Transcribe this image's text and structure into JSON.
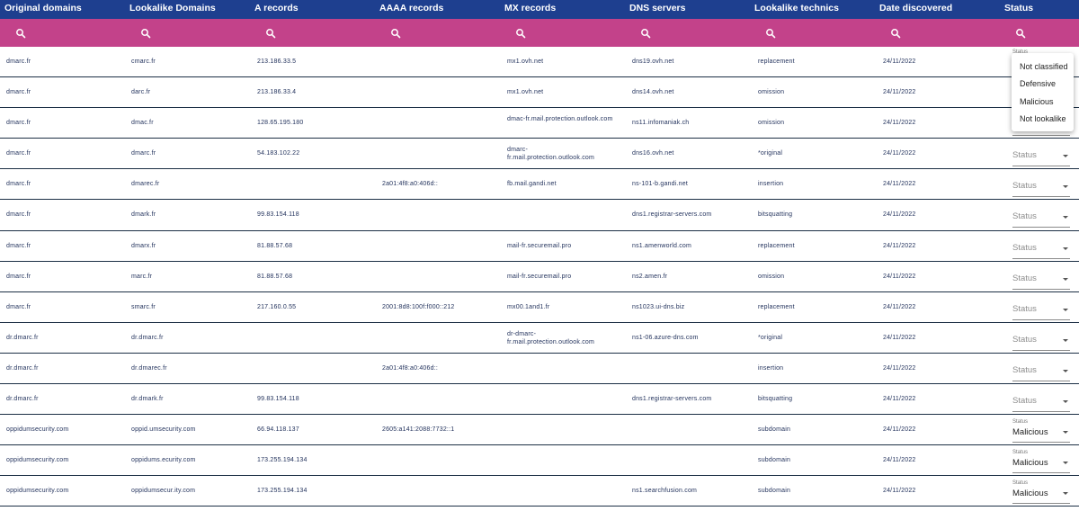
{
  "headers": [
    "Original domains",
    "Lookalike Domains",
    "A records",
    "AAAA records",
    "MX records",
    "DNS servers",
    "Lookalike technics",
    "Date discovered",
    "Status"
  ],
  "search_icon": "search-icon",
  "status_label": "Status",
  "status_placeholder": "Status",
  "dropdown_options": [
    "Not classified",
    "Defensive",
    "Malicious",
    "Not lookalike"
  ],
  "rows": [
    {
      "original": "dmarc.fr",
      "lookalike": "cmarc.fr",
      "a": "213.186.33.5",
      "aaaa": "",
      "mx": "mx1.ovh.net",
      "dns": "dns19.ovh.net",
      "technic": "replacement",
      "date": "24/11/2022",
      "status": ""
    },
    {
      "original": "dmarc.fr",
      "lookalike": "darc.fr",
      "a": "213.186.33.4",
      "aaaa": "",
      "mx": "mx1.ovh.net",
      "dns": "dns14.ovh.net",
      "technic": "omission",
      "date": "24/11/2022",
      "status": ""
    },
    {
      "original": "dmarc.fr",
      "lookalike": "dmac.fr",
      "a": "128.65.195.180",
      "aaaa": "",
      "mx": "dmac-fr.mail.protection.outlook.com",
      "dns": "ns11.infomaniak.ch",
      "technic": "omission",
      "date": "24/11/2022",
      "status": ""
    },
    {
      "original": "dmarc.fr",
      "lookalike": "dmarc.fr",
      "a": "54.183.102.22",
      "aaaa": "",
      "mx": "dmarc-fr.mail.protection.outlook.com",
      "dns": "dns16.ovh.net",
      "technic": "*original",
      "date": "24/11/2022",
      "status": ""
    },
    {
      "original": "dmarc.fr",
      "lookalike": "dmarec.fr",
      "a": "",
      "aaaa": "2a01:4f8:a0:406d::",
      "mx": "fb.mail.gandi.net",
      "dns": "ns-101-b.gandi.net",
      "technic": "insertion",
      "date": "24/11/2022",
      "status": ""
    },
    {
      "original": "dmarc.fr",
      "lookalike": "dmark.fr",
      "a": "99.83.154.118",
      "aaaa": "",
      "mx": "",
      "dns": "dns1.registrar-servers.com",
      "technic": "bitsquatting",
      "date": "24/11/2022",
      "status": ""
    },
    {
      "original": "dmarc.fr",
      "lookalike": "dmarx.fr",
      "a": "81.88.57.68",
      "aaaa": "",
      "mx": "mail-fr.securemail.pro",
      "dns": "ns1.amenworld.com",
      "technic": "replacement",
      "date": "24/11/2022",
      "status": ""
    },
    {
      "original": "dmarc.fr",
      "lookalike": "marc.fr",
      "a": "81.88.57.68",
      "aaaa": "",
      "mx": "mail-fr.securemail.pro",
      "dns": "ns2.amen.fr",
      "technic": "omission",
      "date": "24/11/2022",
      "status": ""
    },
    {
      "original": "dmarc.fr",
      "lookalike": "smarc.fr",
      "a": "217.160.0.55",
      "aaaa": "2001:8d8:100f:f000::212",
      "mx": "mx00.1and1.fr",
      "dns": "ns1023.ui-dns.biz",
      "technic": "replacement",
      "date": "24/11/2022",
      "status": ""
    },
    {
      "original": "dr.dmarc.fr",
      "lookalike": "dr.dmarc.fr",
      "a": "",
      "aaaa": "",
      "mx": "dr-dmarc-fr.mail.protection.outlook.com",
      "dns": "ns1-06.azure-dns.com",
      "technic": "*original",
      "date": "24/11/2022",
      "status": ""
    },
    {
      "original": "dr.dmarc.fr",
      "lookalike": "dr.dmarec.fr",
      "a": "",
      "aaaa": "2a01:4f8:a0:406d::",
      "mx": "",
      "dns": "",
      "technic": "insertion",
      "date": "24/11/2022",
      "status": ""
    },
    {
      "original": "dr.dmarc.fr",
      "lookalike": "dr.dmark.fr",
      "a": "99.83.154.118",
      "aaaa": "",
      "mx": "",
      "dns": "dns1.registrar-servers.com",
      "technic": "bitsquatting",
      "date": "24/11/2022",
      "status": ""
    },
    {
      "original": "oppidumsecurity.com",
      "lookalike": "oppid.umsecurity.com",
      "a": "66.94.118.137",
      "aaaa": "2605:a141:2088:7732::1",
      "mx": "",
      "dns": "",
      "technic": "subdomain",
      "date": "24/11/2022",
      "status": "Malicious"
    },
    {
      "original": "oppidumsecurity.com",
      "lookalike": "oppidums.ecurity.com",
      "a": "173.255.194.134",
      "aaaa": "",
      "mx": "",
      "dns": "",
      "technic": "subdomain",
      "date": "24/11/2022",
      "status": "Malicious"
    },
    {
      "original": "oppidumsecurity.com",
      "lookalike": "oppidumsecur.ity.com",
      "a": "173.255.194.134",
      "aaaa": "",
      "mx": "",
      "dns": "ns1.searchfusion.com",
      "technic": "subdomain",
      "date": "24/11/2022",
      "status": "Malicious"
    }
  ]
}
